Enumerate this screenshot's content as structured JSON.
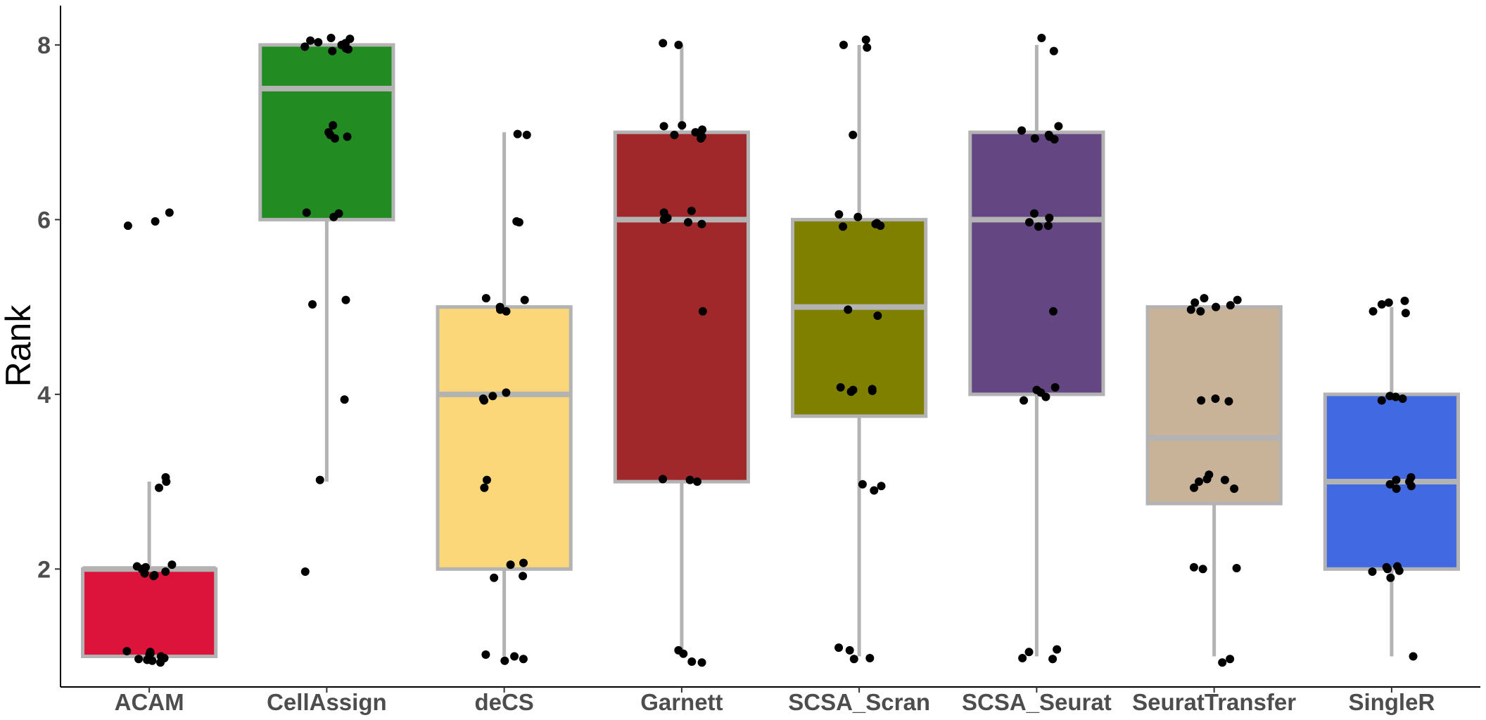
{
  "chart_data": {
    "type": "box",
    "xlabel": "",
    "ylabel": "Rank",
    "ylim": [
      0.65,
      8.45
    ],
    "yticks": [
      2,
      4,
      6,
      8
    ],
    "grid": false,
    "legend": "none",
    "box_outline_color": "#b3b3b3",
    "point_color": "#000000",
    "categories": [
      "ACAM",
      "CellAssign",
      "deCS",
      "Garnett",
      "SCSA_Scran",
      "SCSA_Seurat",
      "SeuratTransfer",
      "SingleR"
    ],
    "boxes": [
      {
        "category": "ACAM",
        "color": "#dc143c",
        "whisker_low": 1,
        "q1": 1,
        "median": 2,
        "q3": 2,
        "whisker_high": 3,
        "points": [
          0.93,
          0.95,
          0.96,
          0.97,
          0.98,
          1.0,
          1.02,
          1.03,
          1.05,
          1.06,
          1.92,
          1.93,
          1.95,
          1.97,
          2.0,
          2.02,
          2.03,
          2.05,
          2.93,
          3.0,
          3.05,
          5.93,
          5.98,
          6.08
        ]
      },
      {
        "category": "CellAssign",
        "color": "#228b22",
        "whisker_low": 3,
        "q1": 6,
        "median": 7.5,
        "q3": 8,
        "whisker_high": 8,
        "points": [
          1.97,
          3.02,
          3.94,
          5.03,
          5.08,
          6.03,
          6.07,
          6.08,
          6.93,
          6.95,
          6.97,
          7.0,
          7.08,
          7.93,
          7.95,
          7.96,
          7.98,
          8.0,
          8.02,
          8.03,
          8.05,
          8.07,
          8.08
        ]
      },
      {
        "category": "deCS",
        "color": "#fcd77a",
        "whisker_low": 1,
        "q1": 2,
        "median": 4,
        "q3": 5,
        "whisker_high": 7,
        "points": [
          0.95,
          0.97,
          1.0,
          1.02,
          1.9,
          1.92,
          2.05,
          2.07,
          2.93,
          3.02,
          3.93,
          3.95,
          3.98,
          4.02,
          4.95,
          4.97,
          5.0,
          5.08,
          5.1,
          5.97,
          5.98,
          6.97,
          6.98
        ]
      },
      {
        "category": "Garnett",
        "color": "#a0282a",
        "whisker_low": 1,
        "q1": 3,
        "median": 6,
        "q3": 7,
        "whisker_high": 8,
        "points": [
          0.93,
          0.94,
          1.03,
          1.07,
          3.0,
          3.02,
          3.03,
          4.95,
          5.95,
          5.97,
          6.0,
          6.02,
          6.08,
          6.1,
          6.93,
          6.95,
          6.97,
          7.0,
          7.03,
          7.07,
          7.08,
          8.0,
          8.02
        ]
      },
      {
        "category": "SCSA_Scran",
        "color": "#808000",
        "whisker_low": 1,
        "q1": 3.75,
        "median": 5,
        "q3": 6,
        "whisker_high": 8,
        "points": [
          0.97,
          0.98,
          1.07,
          1.1,
          2.9,
          2.95,
          2.97,
          4.03,
          4.04,
          4.05,
          4.06,
          4.08,
          4.9,
          4.97,
          5.92,
          5.93,
          5.95,
          5.96,
          6.03,
          6.06,
          6.97,
          7.97,
          8.0,
          8.06
        ]
      },
      {
        "category": "SCSA_Seurat",
        "color": "#634682",
        "whisker_low": 1,
        "q1": 4,
        "median": 6,
        "q3": 7,
        "whisker_high": 8,
        "points": [
          0.97,
          0.98,
          1.05,
          1.08,
          3.93,
          3.97,
          4.02,
          4.05,
          4.08,
          4.95,
          5.92,
          5.93,
          5.97,
          6.02,
          6.07,
          6.92,
          6.93,
          6.95,
          6.97,
          7.02,
          7.07,
          7.93,
          8.08
        ]
      },
      {
        "category": "SeuratTransfer",
        "color": "#c8b298",
        "whisker_low": 1,
        "q1": 2.75,
        "median": 3.5,
        "q3": 5,
        "whisker_high": 5,
        "points": [
          0.93,
          0.97,
          2.0,
          2.01,
          2.02,
          2.92,
          2.93,
          3.0,
          3.02,
          3.03,
          3.08,
          3.92,
          3.93,
          3.95,
          4.95,
          4.97,
          5.0,
          5.02,
          5.05,
          5.08,
          5.1
        ]
      },
      {
        "category": "SingleR",
        "color": "#4169e1",
        "whisker_low": 1,
        "q1": 2,
        "median": 3,
        "q3": 4,
        "whisker_high": 5,
        "points": [
          1.0,
          1.9,
          1.97,
          1.98,
          2.0,
          2.02,
          2.03,
          2.92,
          2.95,
          2.97,
          3.0,
          3.02,
          3.05,
          3.93,
          3.95,
          3.97,
          3.98,
          4.93,
          4.95,
          5.03,
          5.05,
          5.07
        ]
      }
    ]
  }
}
